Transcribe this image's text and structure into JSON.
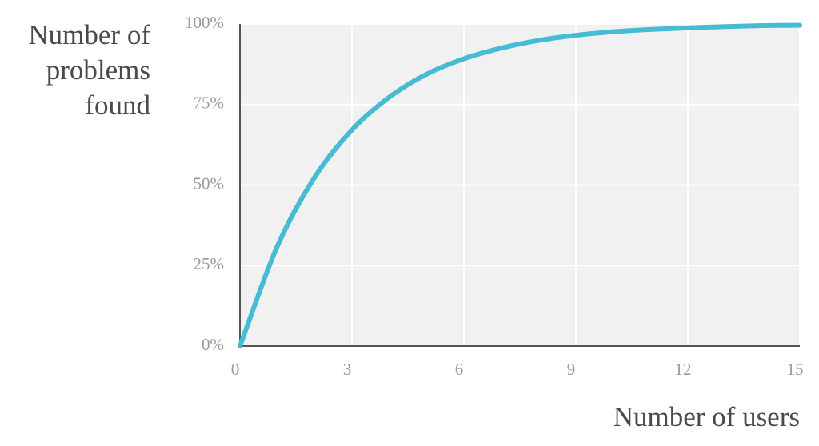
{
  "chart_data": {
    "type": "line",
    "y_label": "Number of problems found",
    "x_label": "Number of users",
    "x": [
      0,
      1,
      2,
      3,
      4,
      5,
      6,
      7,
      8,
      9,
      10,
      11,
      12,
      13,
      14,
      15
    ],
    "series": [
      {
        "color": "#45bcd3",
        "values": [
          0,
          31,
          52.4,
          67.1,
          77.3,
          84.4,
          89.2,
          92.5,
          94.9,
          96.5,
          97.6,
          98.3,
          98.8,
          99.2,
          99.5,
          99.6
        ]
      }
    ],
    "xlim": [
      0,
      15
    ],
    "ylim": [
      0,
      100
    ],
    "xticks": [
      0,
      3,
      6,
      9,
      12,
      15
    ],
    "yticks": [
      {
        "value": 0,
        "label": "0%"
      },
      {
        "value": 25,
        "label": "25%"
      },
      {
        "value": 50,
        "label": "50%"
      },
      {
        "value": 75,
        "label": "75%"
      },
      {
        "value": 100,
        "label": "100%"
      }
    ],
    "grid": true
  }
}
